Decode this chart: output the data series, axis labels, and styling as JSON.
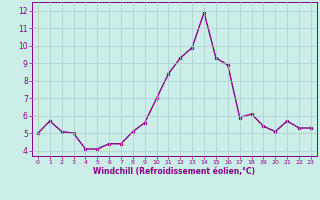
{
  "x": [
    0,
    1,
    2,
    3,
    4,
    5,
    6,
    7,
    8,
    9,
    10,
    11,
    12,
    13,
    14,
    15,
    16,
    17,
    18,
    19,
    20,
    21,
    22,
    23
  ],
  "y": [
    5.0,
    5.7,
    5.1,
    5.0,
    4.1,
    4.1,
    4.4,
    4.4,
    5.1,
    5.6,
    7.0,
    8.4,
    9.3,
    9.9,
    11.9,
    9.3,
    8.9,
    5.9,
    6.1,
    5.4,
    5.1,
    5.7,
    5.3,
    5.3
  ],
  "line_color": "#880088",
  "marker": ".",
  "marker_size": 3,
  "bg_color": "#cceee8",
  "grid_color": "#aacccc",
  "xlabel": "Windchill (Refroidissement éolien,°C)",
  "xlim": [
    -0.5,
    23.5
  ],
  "ylim": [
    3.7,
    12.5
  ],
  "yticks": [
    4,
    5,
    6,
    7,
    8,
    9,
    10,
    11,
    12
  ],
  "xticks": [
    0,
    1,
    2,
    3,
    4,
    5,
    6,
    7,
    8,
    9,
    10,
    11,
    12,
    13,
    14,
    15,
    16,
    17,
    18,
    19,
    20,
    21,
    22,
    23
  ],
  "tick_color": "#880088",
  "label_color": "#880088",
  "line_width": 1.0
}
